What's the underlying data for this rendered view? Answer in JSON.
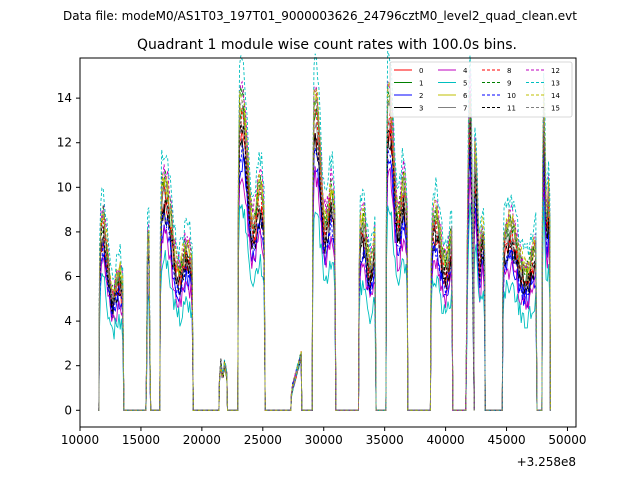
{
  "suptitle": "Data file: modeM0/AS1T03_197T01_9000003626_24796cztM0_level2_quad_clean.evt",
  "chart_data": {
    "type": "line",
    "title": "Quadrant 1 module wise count rates with 100.0s bins.",
    "xlabel": "",
    "ylabel": "",
    "x_offset_label": "+3.258e8",
    "xlim": [
      10000,
      50700
    ],
    "ylim": [
      -0.75,
      15.8
    ],
    "xticks": [
      10000,
      15000,
      20000,
      25000,
      30000,
      35000,
      40000,
      45000,
      50000
    ],
    "xtick_labels": [
      "10000",
      "15000",
      "20000",
      "25000",
      "30000",
      "35000",
      "40000",
      "45000",
      "50000"
    ],
    "yticks": [
      0,
      2,
      4,
      6,
      8,
      10,
      12,
      14
    ],
    "ytick_labels": [
      "0",
      "2",
      "4",
      "6",
      "8",
      "10",
      "12",
      "14"
    ],
    "grid": false,
    "legend_position": "top-right",
    "legend_columns": 4,
    "active_intervals": [
      {
        "start": 11600,
        "end": 13550,
        "peak": 8.4,
        "shape": "decay"
      },
      {
        "start": 15450,
        "end": 15750,
        "peak": 9.0,
        "shape": "spike"
      },
      {
        "start": 16600,
        "end": 19250,
        "peak": 10.0,
        "shape": "decay"
      },
      {
        "start": 21450,
        "end": 22050,
        "peak": 2.3,
        "shape": "flat"
      },
      {
        "start": 23000,
        "end": 25150,
        "peak": 13.5,
        "shape": "decay"
      },
      {
        "start": 27350,
        "end": 28150,
        "peak": 2.5,
        "shape": "rise"
      },
      {
        "start": 29100,
        "end": 30950,
        "peak": 13.5,
        "shape": "decay"
      },
      {
        "start": 32900,
        "end": 34250,
        "peak": 9.8,
        "shape": "plateau"
      },
      {
        "start": 35150,
        "end": 36850,
        "peak": 13.8,
        "shape": "decay"
      },
      {
        "start": 38800,
        "end": 40550,
        "peak": 10.0,
        "shape": "plateau"
      },
      {
        "start": 41700,
        "end": 42300,
        "peak": 14.5,
        "shape": "spike"
      },
      {
        "start": 42300,
        "end": 43200,
        "peak": 11.0,
        "shape": "decay"
      },
      {
        "start": 44700,
        "end": 47450,
        "peak": 9.5,
        "shape": "plateau"
      },
      {
        "start": 47950,
        "end": 48550,
        "peak": 13.5,
        "shape": "decay"
      }
    ],
    "series": [
      {
        "name": "0",
        "color": "#ff0000",
        "dash": "solid",
        "scale": 0.86
      },
      {
        "name": "1",
        "color": "#008000",
        "dash": "solid",
        "scale": 0.94
      },
      {
        "name": "2",
        "color": "#0000ff",
        "dash": "solid",
        "scale": 0.78
      },
      {
        "name": "3",
        "color": "#000000",
        "dash": "solid",
        "scale": 0.84
      },
      {
        "name": "4",
        "color": "#bf00bf",
        "dash": "solid",
        "scale": 0.74
      },
      {
        "name": "5",
        "color": "#00bfbf",
        "dash": "solid",
        "scale": 0.64
      },
      {
        "name": "6",
        "color": "#bfbf00",
        "dash": "solid",
        "scale": 0.97
      },
      {
        "name": "7",
        "color": "#808080",
        "dash": "solid",
        "scale": 0.9
      },
      {
        "name": "8",
        "color": "#ff0000",
        "dash": "dashed",
        "scale": 0.92
      },
      {
        "name": "9",
        "color": "#008000",
        "dash": "dashed",
        "scale": 0.99
      },
      {
        "name": "10",
        "color": "#0000ff",
        "dash": "dashed",
        "scale": 0.81
      },
      {
        "name": "11",
        "color": "#000000",
        "dash": "dashed",
        "scale": 0.88
      },
      {
        "name": "12",
        "color": "#bf00bf",
        "dash": "dashed",
        "scale": 1.02
      },
      {
        "name": "13",
        "color": "#00bfbf",
        "dash": "dashed",
        "scale": 1.1
      },
      {
        "name": "14",
        "color": "#bfbf00",
        "dash": "dashed",
        "scale": 1.0
      },
      {
        "name": "15",
        "color": "#808080",
        "dash": "dashed",
        "scale": 0.96
      }
    ]
  }
}
